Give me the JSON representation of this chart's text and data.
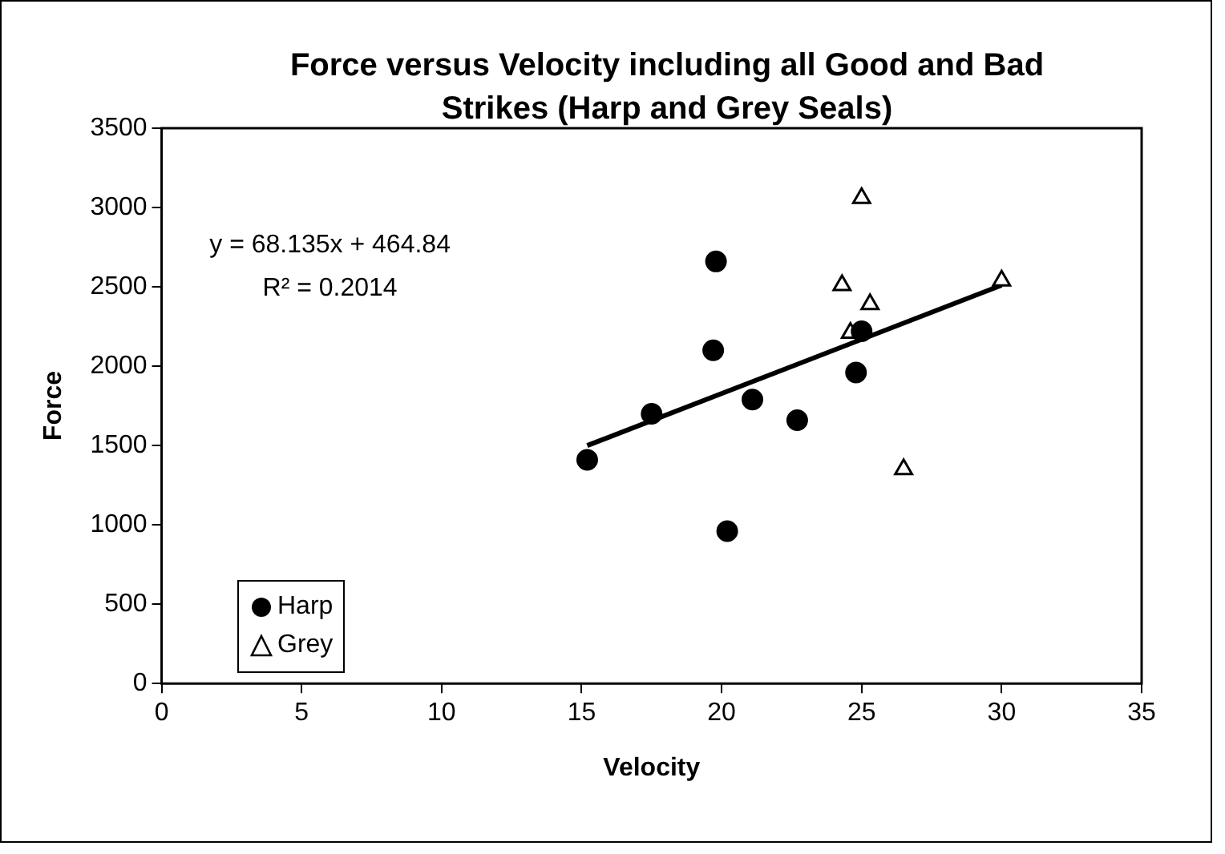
{
  "chart_data": {
    "type": "scatter",
    "title": "Force versus Velocity including all Good and Bad Strikes (Harp and Grey Seals)",
    "xlabel": "Velocity",
    "ylabel": "Force",
    "xlim": [
      0,
      35
    ],
    "xticks": [
      0,
      5,
      10,
      15,
      20,
      25,
      30,
      35
    ],
    "ylim": [
      0,
      3500
    ],
    "yticks": [
      0,
      500,
      1000,
      1500,
      2000,
      2500,
      3000,
      3500
    ],
    "grid": false,
    "legend": "bottom left",
    "annotations": [
      "y = 68.135x + 464.84",
      "R² = 0.2014"
    ],
    "series": [
      {
        "name": "Harp",
        "color": "#000000",
        "marker": "circle",
        "x": [
          15.2,
          17.5,
          19.8,
          19.7,
          21.1,
          20.2,
          22.7,
          24.8,
          25.0
        ],
        "values": [
          1410,
          1700,
          2660,
          2100,
          1790,
          960,
          1660,
          1960,
          2220
        ]
      },
      {
        "name": "Grey",
        "color": "#000000",
        "marker": "triangle",
        "x": [
          25.0,
          24.3,
          25.3,
          24.6,
          30.0,
          26.5
        ],
        "values": [
          3060,
          2510,
          2390,
          2210,
          2540,
          1350
        ]
      },
      {
        "type": "line",
        "color": "#000000",
        "marker": "none",
        "line_style": "solid",
        "x": [
          15.2,
          30.0
        ],
        "values": [
          1500,
          2510
        ]
      }
    ]
  }
}
